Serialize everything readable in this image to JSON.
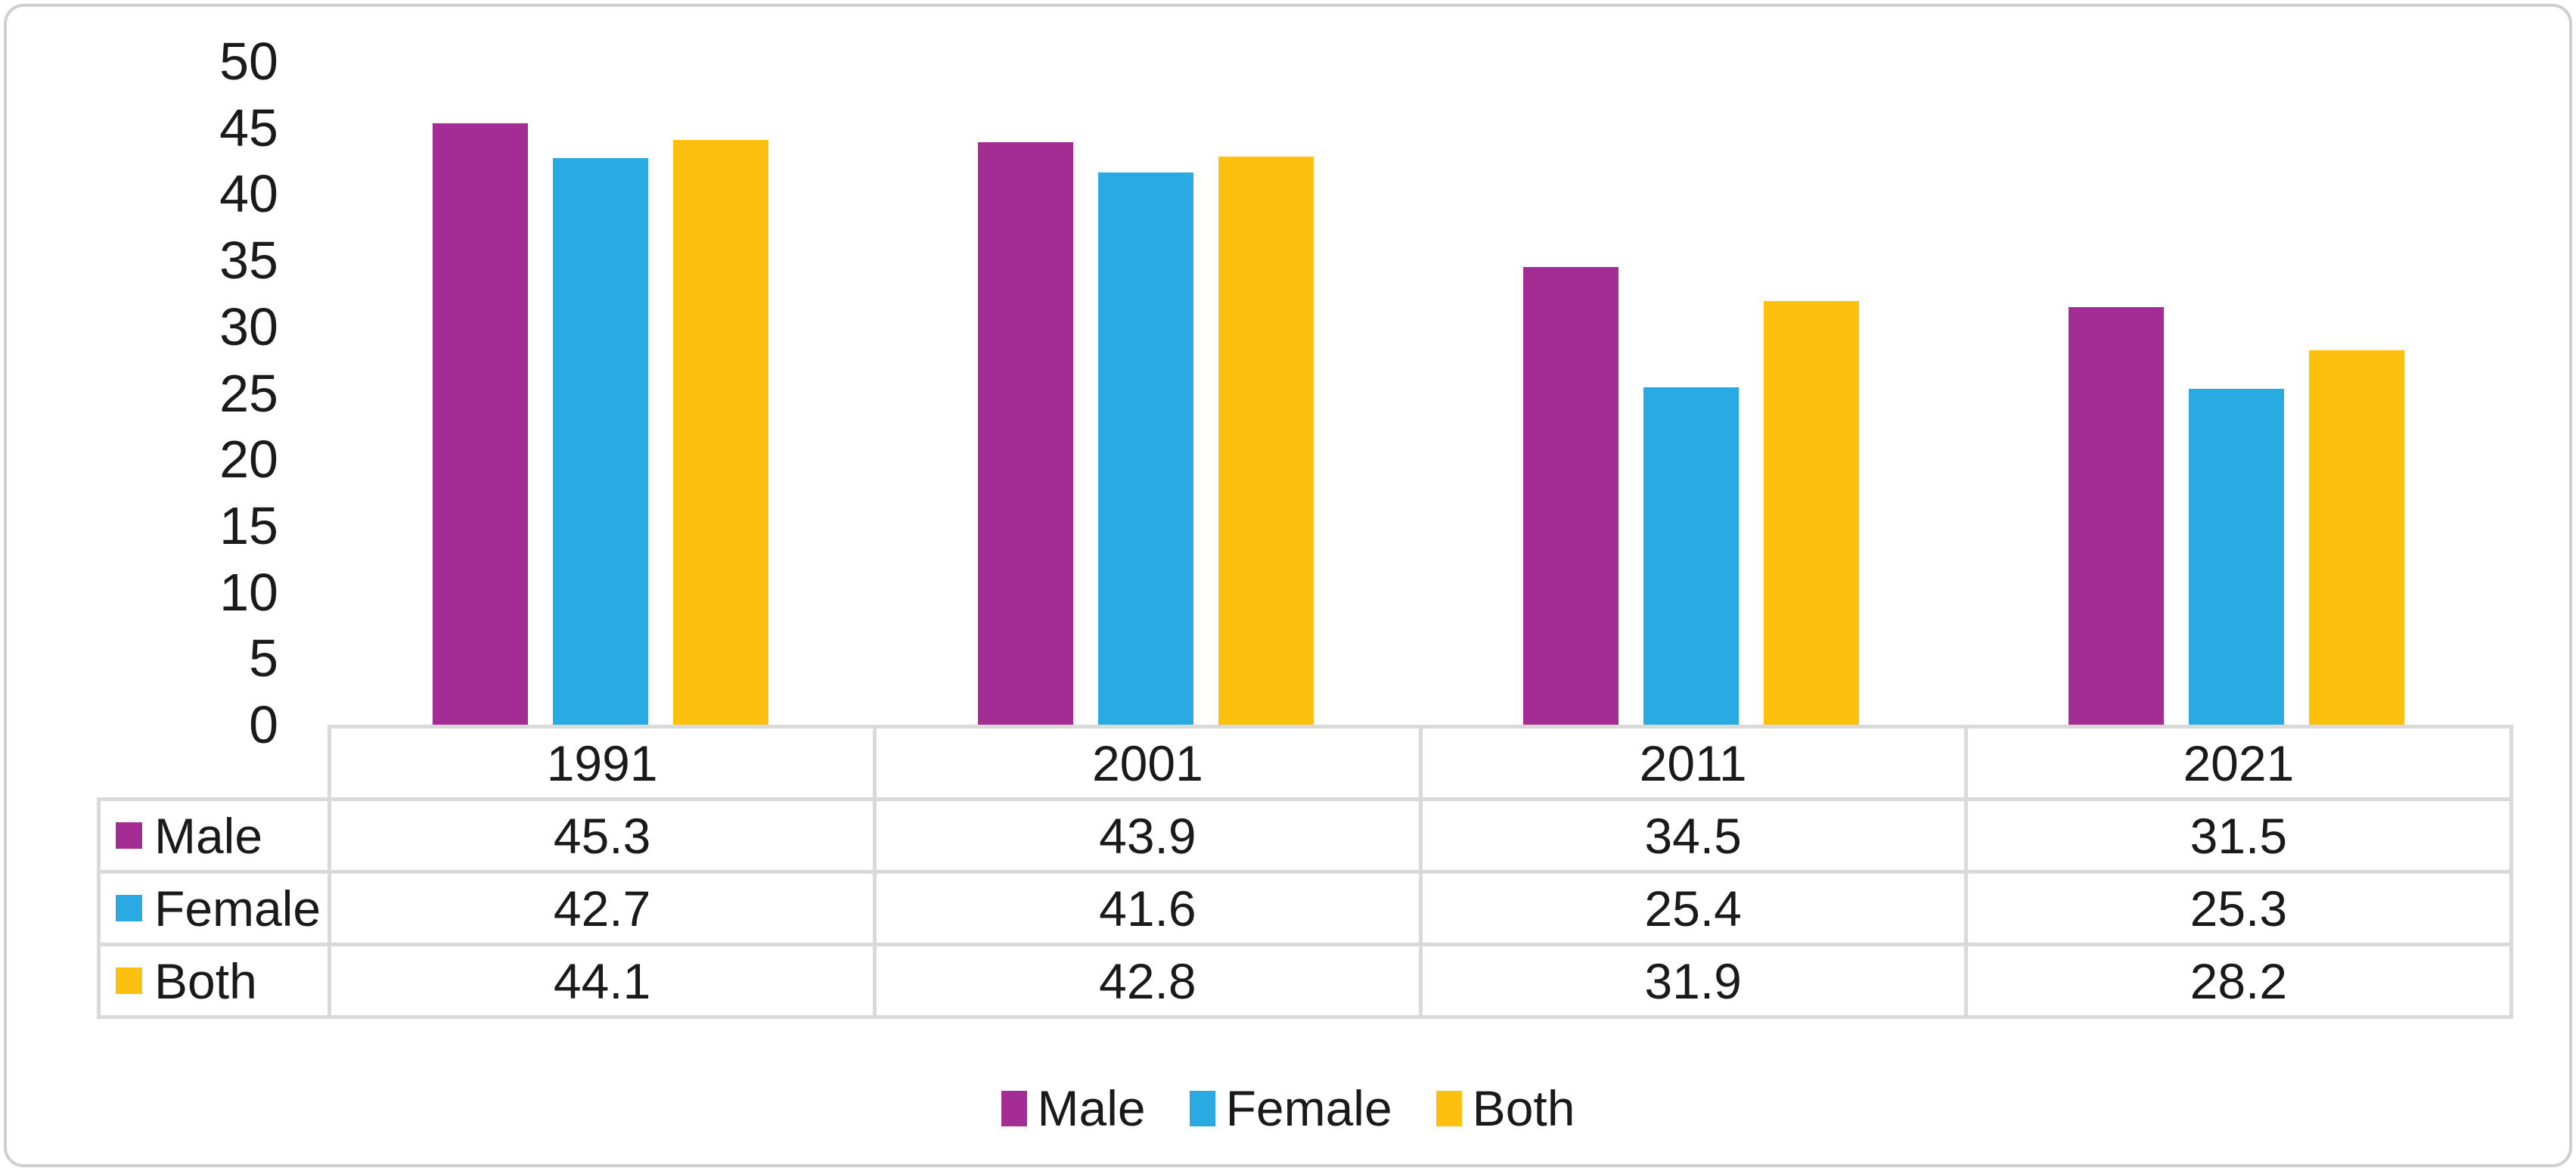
{
  "chart_data": {
    "type": "bar",
    "title": "",
    "xlabel": "",
    "ylabel": "",
    "categories": [
      "1991",
      "2001",
      "2011",
      "2021"
    ],
    "series": [
      {
        "name": "Male",
        "color": "#A32D93",
        "values": [
          45.3,
          43.9,
          34.5,
          31.5
        ]
      },
      {
        "name": "Female",
        "color": "#29ABE2",
        "values": [
          42.7,
          41.6,
          25.4,
          25.3
        ]
      },
      {
        "name": "Both",
        "color": "#FEC00E",
        "values": [
          44.1,
          42.8,
          31.9,
          28.2
        ]
      }
    ],
    "ylim": [
      0,
      50
    ],
    "yticks": [
      "0",
      "5",
      "10",
      "15",
      "20",
      "25",
      "30",
      "35",
      "40",
      "45",
      "50"
    ],
    "grid": false,
    "legend_position": "bottom",
    "value_decimals": 1
  },
  "legend": {
    "items": [
      {
        "label": "Male",
        "color": "#A32D93"
      },
      {
        "label": "Female",
        "color": "#29ABE2"
      },
      {
        "label": "Both",
        "color": "#FEC00E"
      }
    ]
  },
  "colors": {
    "table_border": "#d9d9d9",
    "frame_border": "#cfcfcf",
    "text": "#1a1a1a",
    "background": "#ffffff"
  }
}
